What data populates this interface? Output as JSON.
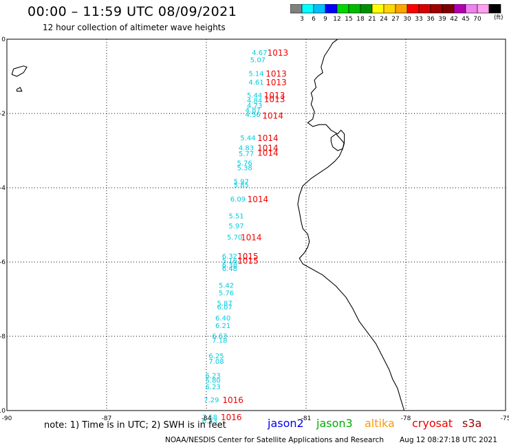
{
  "header": {
    "title": "00:00 – 11:59 UTC 08/09/2021",
    "subtitle": "12 hour collection of altimeter wave heights"
  },
  "colorbar": {
    "colors": [
      "#808080",
      "#00ffff",
      "#00bfff",
      "#0000ff",
      "#00d700",
      "#00ba00",
      "#008f00",
      "#ffff00",
      "#ffd700",
      "#ffa500",
      "#ff0000",
      "#d70000",
      "#a00000",
      "#7f0000",
      "#b000b0",
      "#ee82ee",
      "#ffa0ee",
      "#000000"
    ],
    "labels": [
      "3",
      "6",
      "9",
      "12",
      "15",
      "18",
      "21",
      "24",
      "27",
      "30",
      "33",
      "36",
      "39",
      "42",
      "45",
      "70"
    ],
    "unit": "(ft)"
  },
  "axes": {
    "x_ticks": [
      {
        "value": -90,
        "label": "-90"
      },
      {
        "value": -87,
        "label": "-87"
      },
      {
        "value": -84,
        "label": "-84"
      },
      {
        "value": -81,
        "label": "-81"
      },
      {
        "value": -78,
        "label": "-78"
      },
      {
        "value": -75,
        "label": "-75"
      }
    ],
    "y_ticks": [
      {
        "value": 0,
        "label": "0"
      },
      {
        "value": -2,
        "label": "-2"
      },
      {
        "value": -4,
        "label": "-4"
      },
      {
        "value": -6,
        "label": "-6"
      },
      {
        "value": -8,
        "label": "-8"
      },
      {
        "value": -10,
        "label": "-10"
      }
    ],
    "xlim": [
      -90,
      -75
    ],
    "ylim": [
      -10,
      0
    ],
    "grid": true
  },
  "wave_heights": {
    "color": "#00ccdd",
    "points": [
      {
        "lon": -82.4,
        "lat": -0.35,
        "label": "4.67"
      },
      {
        "lon": -82.45,
        "lat": -0.55,
        "label": "5.07"
      },
      {
        "lon": -82.5,
        "lat": -0.92,
        "label": "5.14"
      },
      {
        "lon": -82.5,
        "lat": -1.15,
        "label": "4.61"
      },
      {
        "lon": -82.55,
        "lat": -1.5,
        "label": "5.44"
      },
      {
        "lon": -82.55,
        "lat": -1.64,
        "label": "4.84"
      },
      {
        "lon": -82.55,
        "lat": -1.78,
        "label": "4.73"
      },
      {
        "lon": -82.6,
        "lat": -1.9,
        "label": "4.87"
      },
      {
        "lon": -82.6,
        "lat": -2.02,
        "label": "4.56"
      },
      {
        "lon": -82.75,
        "lat": -2.65,
        "label": "5.44"
      },
      {
        "lon": -82.8,
        "lat": -2.92,
        "label": "4.83"
      },
      {
        "lon": -82.8,
        "lat": -3.07,
        "label": "5.77"
      },
      {
        "lon": -82.85,
        "lat": -3.32,
        "label": "5.76"
      },
      {
        "lon": -82.85,
        "lat": -3.45,
        "label": "5.38"
      },
      {
        "lon": -82.95,
        "lat": -3.82,
        "label": "5.97"
      },
      {
        "lon": -82.95,
        "lat": -3.92,
        "label": "5.85"
      },
      {
        "lon": -83.05,
        "lat": -4.3,
        "label": "6.09"
      },
      {
        "lon": -83.1,
        "lat": -4.75,
        "label": "5.51"
      },
      {
        "lon": -83.1,
        "lat": -5.02,
        "label": "5.97"
      },
      {
        "lon": -83.15,
        "lat": -5.32,
        "label": "5.70"
      },
      {
        "lon": -83.3,
        "lat": -5.83,
        "label": "6.32"
      },
      {
        "lon": -83.3,
        "lat": -5.95,
        "label": "5.16"
      },
      {
        "lon": -83.3,
        "lat": -6.07,
        "label": "6.38"
      },
      {
        "lon": -83.3,
        "lat": -6.17,
        "label": "6.48"
      },
      {
        "lon": -83.4,
        "lat": -6.62,
        "label": "5.42"
      },
      {
        "lon": -83.4,
        "lat": -6.82,
        "label": "5.76"
      },
      {
        "lon": -83.45,
        "lat": -7.1,
        "label": "5.87"
      },
      {
        "lon": -83.45,
        "lat": -7.2,
        "label": "6.07"
      },
      {
        "lon": -83.5,
        "lat": -7.5,
        "label": "6.40"
      },
      {
        "lon": -83.5,
        "lat": -7.7,
        "label": "6.21"
      },
      {
        "lon": -83.6,
        "lat": -7.98,
        "label": "6.63"
      },
      {
        "lon": -83.6,
        "lat": -8.1,
        "label": "7.18"
      },
      {
        "lon": -83.7,
        "lat": -8.52,
        "label": "6.25"
      },
      {
        "lon": -83.7,
        "lat": -8.67,
        "label": "7.08"
      },
      {
        "lon": -83.8,
        "lat": -9.05,
        "label": "6.23"
      },
      {
        "lon": -83.8,
        "lat": -9.18,
        "label": "5.80"
      },
      {
        "lon": -83.8,
        "lat": -9.35,
        "label": "6.23"
      },
      {
        "lon": -83.85,
        "lat": -9.7,
        "label": "7.29"
      },
      {
        "lon": -83.9,
        "lat": -10.17,
        "label": "7.58"
      },
      {
        "lon": -83.9,
        "lat": -10.27,
        "label": "6.33"
      }
    ]
  },
  "pressure": {
    "color": "#ee0000",
    "points": [
      {
        "lon": -81.85,
        "lat": -0.35,
        "label": "1013"
      },
      {
        "lon": -81.9,
        "lat": -0.92,
        "label": "1013"
      },
      {
        "lon": -81.9,
        "lat": -1.15,
        "label": "1013"
      },
      {
        "lon": -81.95,
        "lat": -1.5,
        "label": "1013"
      },
      {
        "lon": -81.95,
        "lat": -1.6,
        "label": "1013"
      },
      {
        "lon": -82.0,
        "lat": -2.05,
        "label": "1014"
      },
      {
        "lon": -82.15,
        "lat": -2.65,
        "label": "1014"
      },
      {
        "lon": -82.15,
        "lat": -2.92,
        "label": "1014"
      },
      {
        "lon": -82.15,
        "lat": -3.05,
        "label": "1014"
      },
      {
        "lon": -82.45,
        "lat": -4.3,
        "label": "1014"
      },
      {
        "lon": -82.65,
        "lat": -5.32,
        "label": "1014"
      },
      {
        "lon": -82.75,
        "lat": -5.83,
        "label": "1015"
      },
      {
        "lon": -82.75,
        "lat": -5.95,
        "label": "1015"
      },
      {
        "lon": -83.2,
        "lat": -9.7,
        "label": "1016"
      },
      {
        "lon": -83.25,
        "lat": -10.17,
        "label": "1016"
      }
    ]
  },
  "coastline": [
    [
      -80.05,
      0.0
    ],
    [
      -80.2,
      -0.1
    ],
    [
      -80.3,
      -0.25
    ],
    [
      -80.45,
      -0.45
    ],
    [
      -80.5,
      -0.6
    ],
    [
      -80.55,
      -0.75
    ],
    [
      -80.5,
      -0.9
    ],
    [
      -80.65,
      -1.0
    ],
    [
      -80.75,
      -1.1
    ],
    [
      -80.7,
      -1.3
    ],
    [
      -80.85,
      -1.45
    ],
    [
      -80.8,
      -1.6
    ],
    [
      -80.85,
      -1.75
    ],
    [
      -80.75,
      -1.95
    ],
    [
      -80.8,
      -2.15
    ],
    [
      -80.95,
      -2.25
    ],
    [
      -80.8,
      -2.35
    ],
    [
      -80.6,
      -2.3
    ],
    [
      -80.4,
      -2.3
    ],
    [
      -80.25,
      -2.45
    ],
    [
      -80.05,
      -2.55
    ],
    [
      -79.95,
      -2.45
    ],
    [
      -79.85,
      -2.55
    ],
    [
      -79.85,
      -2.75
    ],
    [
      -79.9,
      -2.95
    ],
    [
      -80.0,
      -3.15
    ],
    [
      -80.15,
      -3.3
    ],
    [
      -80.35,
      -3.45
    ],
    [
      -80.6,
      -3.6
    ],
    [
      -80.85,
      -3.75
    ],
    [
      -81.1,
      -3.95
    ],
    [
      -81.2,
      -4.2
    ],
    [
      -81.25,
      -4.45
    ],
    [
      -81.2,
      -4.65
    ],
    [
      -81.15,
      -4.9
    ],
    [
      -81.1,
      -5.1
    ],
    [
      -80.95,
      -5.25
    ],
    [
      -80.9,
      -5.45
    ],
    [
      -80.95,
      -5.6
    ],
    [
      -81.05,
      -5.75
    ],
    [
      -81.2,
      -5.9
    ],
    [
      -81.1,
      -6.05
    ],
    [
      -80.9,
      -6.15
    ],
    [
      -80.5,
      -6.35
    ],
    [
      -80.1,
      -6.65
    ],
    [
      -79.8,
      -6.95
    ],
    [
      -79.6,
      -7.25
    ],
    [
      -79.4,
      -7.6
    ],
    [
      -79.15,
      -7.9
    ],
    [
      -78.9,
      -8.2
    ],
    [
      -78.7,
      -8.55
    ],
    [
      -78.5,
      -8.9
    ],
    [
      -78.4,
      -9.15
    ],
    [
      -78.25,
      -9.4
    ],
    [
      -78.15,
      -9.7
    ],
    [
      -78.05,
      -10.0
    ]
  ],
  "island_coast": [
    [
      -80.25,
      -2.65
    ],
    [
      -80.1,
      -2.55
    ],
    [
      -80.0,
      -2.65
    ],
    [
      -79.85,
      -2.8
    ],
    [
      -79.9,
      -2.95
    ],
    [
      -80.05,
      -3.0
    ],
    [
      -80.2,
      -2.9
    ],
    [
      -80.25,
      -2.75
    ],
    [
      -80.25,
      -2.65
    ]
  ],
  "galapagos_main": [
    [
      -89.8,
      -0.8
    ],
    [
      -89.5,
      -0.72
    ],
    [
      -89.4,
      -0.75
    ],
    [
      -89.5,
      -0.9
    ],
    [
      -89.7,
      -1.0
    ],
    [
      -89.85,
      -0.95
    ],
    [
      -89.8,
      -0.8
    ]
  ],
  "galapagos_small": [
    [
      -89.7,
      -1.35
    ],
    [
      -89.6,
      -1.3
    ],
    [
      -89.55,
      -1.4
    ],
    [
      -89.7,
      -1.4
    ],
    [
      -89.7,
      -1.35
    ]
  ],
  "footer": {
    "note": "note: 1) Time is in UTC; 2) SWH is in feet",
    "satellites": [
      {
        "name": "jason2",
        "color": "#0000ee"
      },
      {
        "name": "jason3",
        "color": "#00aa00"
      },
      {
        "name": "altika",
        "color": "#ff9900"
      },
      {
        "name": "cryosat",
        "color": "#ee0000"
      },
      {
        "name": "s3a",
        "color": "#990000"
      }
    ],
    "credit": "NOAA/NESDIS Center for Satellite Applications and Research",
    "timestamp": "Aug 12 08:27:18 UTC 2021"
  }
}
